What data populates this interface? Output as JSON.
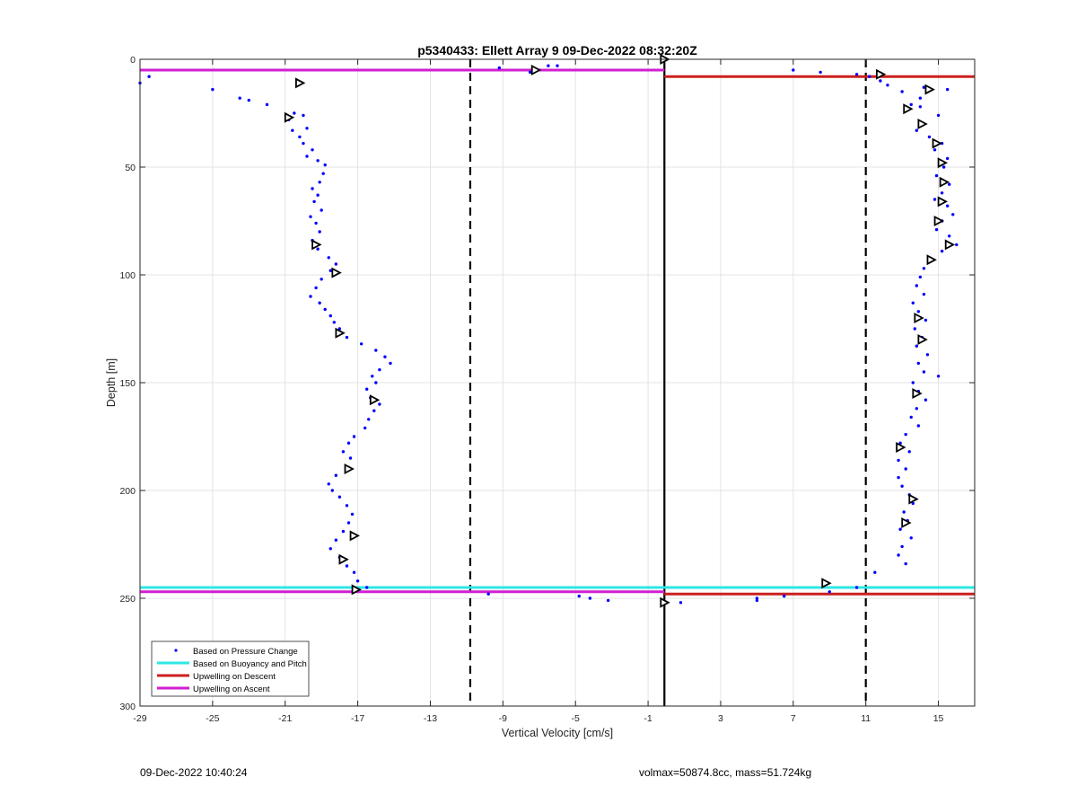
{
  "chart_data": {
    "type": "scatter",
    "title": "p5340433: Ellett Array 9 09-Dec-2022 08:32:20Z",
    "xlabel": "Vertical Velocity [cm/s]",
    "ylabel": "Depth [m]",
    "xlim": [
      -29,
      17
    ],
    "ylim": [
      0,
      300
    ],
    "y_reversed": true,
    "grid": true,
    "xticks": [
      -29,
      -25,
      -21,
      -17,
      -13,
      -9,
      -5,
      -1,
      3,
      7,
      11,
      15
    ],
    "yticks": [
      0,
      50,
      100,
      150,
      200,
      250,
      300
    ],
    "legend_position": "bottom-left",
    "legend": [
      {
        "label": "Based on Pressure Change",
        "color": "#0000ff",
        "marker": "dot"
      },
      {
        "label": "Based on Buoyancy and Pitch",
        "color": "#2ee6e6",
        "marker": "line"
      },
      {
        "label": "Upwelling on Descent",
        "color": "#cc1f1f",
        "marker": "line"
      },
      {
        "label": "Upwelling on Ascent",
        "color": "#d11fd1",
        "marker": "line"
      }
    ],
    "vertical_lines": [
      {
        "x": -10.8,
        "style": "dashed",
        "color": "#000000"
      },
      {
        "x": -0.1,
        "style": "solid",
        "color": "#000000"
      },
      {
        "x": 11.0,
        "style": "dashed",
        "color": "#000000"
      }
    ],
    "horizontal_lines": [
      {
        "series": "Upwelling on Ascent",
        "y": 5,
        "x_from": -29,
        "x_to": -0.1,
        "color": "#d11fd1"
      },
      {
        "series": "Upwelling on Descent",
        "y": 8,
        "x_from": -0.1,
        "x_to": 17,
        "color": "#cc1f1f"
      },
      {
        "series": "Based on Buoyancy and Pitch",
        "y": 245,
        "x_from": -29,
        "x_to": 17,
        "color": "#2ee6e6"
      },
      {
        "series": "Upwelling on Ascent",
        "y": 247,
        "x_from": -29,
        "x_to": -0.1,
        "color": "#d11fd1"
      },
      {
        "series": "Upwelling on Descent",
        "y": 248,
        "x_from": -0.1,
        "x_to": 17,
        "color": "#cc1f1f"
      }
    ],
    "series": [
      {
        "name": "Based on Pressure Change",
        "color": "#0000ff",
        "points": [
          [
            -29,
            11
          ],
          [
            -28.5,
            8
          ],
          [
            -25,
            14
          ],
          [
            -23.5,
            18
          ],
          [
            -23,
            19
          ],
          [
            -22,
            21
          ],
          [
            -20.5,
            25
          ],
          [
            -20.8,
            28
          ],
          [
            -20,
            26
          ],
          [
            -19.8,
            32
          ],
          [
            -20.6,
            33
          ],
          [
            -20.2,
            36
          ],
          [
            -20,
            39
          ],
          [
            -19.5,
            42
          ],
          [
            -19.8,
            45
          ],
          [
            -19.2,
            47
          ],
          [
            -18.8,
            49
          ],
          [
            -18.9,
            53
          ],
          [
            -19.1,
            57
          ],
          [
            -19.5,
            60
          ],
          [
            -19.2,
            63
          ],
          [
            -19.4,
            66
          ],
          [
            -19.0,
            70
          ],
          [
            -19.6,
            73
          ],
          [
            -19.3,
            76
          ],
          [
            -19.1,
            80
          ],
          [
            -19.5,
            84
          ],
          [
            -19.2,
            88
          ],
          [
            -18.6,
            92
          ],
          [
            -18.2,
            95
          ],
          [
            -18.5,
            98
          ],
          [
            -19.0,
            102
          ],
          [
            -19.3,
            106
          ],
          [
            -19.6,
            110
          ],
          [
            -19.1,
            113
          ],
          [
            -18.8,
            116
          ],
          [
            -18.5,
            119
          ],
          [
            -18.3,
            122
          ],
          [
            -18.0,
            125
          ],
          [
            -17.6,
            129
          ],
          [
            -16.8,
            132
          ],
          [
            -16.0,
            135
          ],
          [
            -15.5,
            138
          ],
          [
            -15.2,
            141
          ],
          [
            -15.8,
            144
          ],
          [
            -16.2,
            147
          ],
          [
            -16.0,
            150
          ],
          [
            -16.5,
            153
          ],
          [
            -16.3,
            157
          ],
          [
            -15.8,
            160
          ],
          [
            -16.1,
            163
          ],
          [
            -16.4,
            167
          ],
          [
            -16.6,
            171
          ],
          [
            -17.2,
            175
          ],
          [
            -17.5,
            178
          ],
          [
            -17.8,
            182
          ],
          [
            -17.4,
            185
          ],
          [
            -17.6,
            189
          ],
          [
            -18.2,
            193
          ],
          [
            -18.6,
            197
          ],
          [
            -18.4,
            200
          ],
          [
            -18.0,
            203
          ],
          [
            -17.6,
            207
          ],
          [
            -17.3,
            211
          ],
          [
            -17.5,
            215
          ],
          [
            -17.8,
            219
          ],
          [
            -18.2,
            223
          ],
          [
            -18.5,
            227
          ],
          [
            -18.0,
            231
          ],
          [
            -17.6,
            235
          ],
          [
            -17.2,
            238
          ],
          [
            -17.0,
            242
          ],
          [
            -16.5,
            245
          ],
          [
            -9.2,
            4
          ],
          [
            -7.5,
            6
          ],
          [
            -6.5,
            3
          ],
          [
            -6.0,
            3
          ],
          [
            -9.8,
            248
          ],
          [
            -4.8,
            249
          ],
          [
            -4.2,
            250
          ],
          [
            -3.2,
            251
          ],
          [
            7.0,
            5
          ],
          [
            8.5,
            6
          ],
          [
            10.5,
            7
          ],
          [
            11.2,
            8
          ],
          [
            11.8,
            10
          ],
          [
            12.2,
            12
          ],
          [
            13.0,
            15
          ],
          [
            14.2,
            13
          ],
          [
            15.5,
            14
          ],
          [
            14.0,
            18
          ],
          [
            13.5,
            21
          ],
          [
            13.2,
            24
          ],
          [
            14.0,
            22
          ],
          [
            15.0,
            26
          ],
          [
            14.2,
            30
          ],
          [
            13.8,
            33
          ],
          [
            14.5,
            36
          ],
          [
            15.2,
            39
          ],
          [
            14.8,
            42
          ],
          [
            15.5,
            46
          ],
          [
            15.3,
            50
          ],
          [
            14.9,
            54
          ],
          [
            15.6,
            58
          ],
          [
            15.2,
            62
          ],
          [
            14.8,
            65
          ],
          [
            15.5,
            68
          ],
          [
            15.8,
            72
          ],
          [
            15.2,
            75
          ],
          [
            14.9,
            79
          ],
          [
            15.6,
            82
          ],
          [
            16.0,
            86
          ],
          [
            15.2,
            89
          ],
          [
            14.6,
            93
          ],
          [
            14.2,
            97
          ],
          [
            14.0,
            101
          ],
          [
            13.8,
            105
          ],
          [
            14.2,
            109
          ],
          [
            13.6,
            113
          ],
          [
            13.9,
            117
          ],
          [
            14.3,
            121
          ],
          [
            13.7,
            125
          ],
          [
            14.1,
            129
          ],
          [
            13.8,
            133
          ],
          [
            14.4,
            137
          ],
          [
            13.9,
            141
          ],
          [
            14.2,
            145
          ],
          [
            15.0,
            147
          ],
          [
            13.6,
            150
          ],
          [
            13.9,
            154
          ],
          [
            14.3,
            158
          ],
          [
            13.8,
            162
          ],
          [
            13.5,
            166
          ],
          [
            13.9,
            170
          ],
          [
            13.2,
            174
          ],
          [
            12.9,
            178
          ],
          [
            13.4,
            182
          ],
          [
            12.8,
            186
          ],
          [
            13.2,
            190
          ],
          [
            12.8,
            194
          ],
          [
            13.0,
            198
          ],
          [
            13.4,
            202
          ],
          [
            13.6,
            206
          ],
          [
            13.1,
            210
          ],
          [
            13.3,
            214
          ],
          [
            12.9,
            218
          ],
          [
            13.5,
            222
          ],
          [
            13.0,
            226
          ],
          [
            12.8,
            230
          ],
          [
            13.2,
            234
          ],
          [
            11.5,
            238
          ],
          [
            10.5,
            245
          ],
          [
            9.0,
            247
          ],
          [
            6.5,
            249
          ],
          [
            5.0,
            250
          ],
          [
            5.0,
            251
          ],
          [
            0.8,
            252
          ],
          [
            -0.1,
            252
          ]
        ]
      },
      {
        "name": "",
        "color": "#000000",
        "marker": "triangle",
        "points": [
          [
            -0.1,
            0
          ],
          [
            -7.2,
            5
          ],
          [
            -20.2,
            11
          ],
          [
            -20.8,
            27
          ],
          [
            -19.3,
            86
          ],
          [
            -18.2,
            99
          ],
          [
            -18.0,
            127
          ],
          [
            -16.1,
            158
          ],
          [
            -17.5,
            190
          ],
          [
            -17.2,
            221
          ],
          [
            -17.8,
            232
          ],
          [
            -17.1,
            246
          ],
          [
            11.8,
            7
          ],
          [
            14.5,
            14
          ],
          [
            13.3,
            23
          ],
          [
            14.1,
            30
          ],
          [
            14.9,
            39
          ],
          [
            15.2,
            48
          ],
          [
            15.3,
            57
          ],
          [
            15.2,
            66
          ],
          [
            15.0,
            75
          ],
          [
            15.6,
            86
          ],
          [
            14.6,
            93
          ],
          [
            13.9,
            120
          ],
          [
            14.1,
            130
          ],
          [
            13.8,
            155
          ],
          [
            12.9,
            180
          ],
          [
            13.6,
            204
          ],
          [
            13.2,
            215
          ],
          [
            8.8,
            243
          ],
          [
            -0.1,
            252
          ]
        ]
      }
    ]
  },
  "footer": {
    "left": "09-Dec-2022 10:40:24",
    "right": "volmax=50874.8cc, mass=51.724kg"
  }
}
